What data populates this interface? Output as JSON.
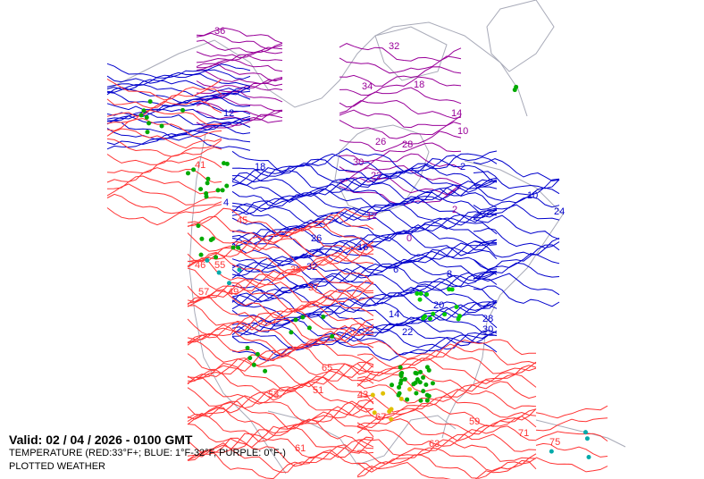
{
  "legend": {
    "valid": "Valid: 02 / 04 / 2026  -  0100 GMT",
    "temperature": "TEMPERATURE (RED:33°F+; BLUE: 1°F-32°F, PURPLE: 0°F-)",
    "weather": "PLOTTED WEATHER"
  },
  "colors": {
    "warm": "#ff3333",
    "cool": "#0000cc",
    "cold": "#990099",
    "coast": "#a8aab8",
    "rain": "#00aa00",
    "snow": "#00cc00",
    "freezing": "#00aaaa",
    "fog": "#e0c000"
  },
  "contour_labels": {
    "red": [
      "41",
      "45",
      "39",
      "57",
      "49",
      "37",
      "53",
      "61",
      "59",
      "63",
      "71",
      "75",
      "67",
      "65",
      "55",
      "46",
      "51",
      "43"
    ],
    "blue": [
      "26",
      "18",
      "12",
      "10",
      "6",
      "8",
      "4",
      "14",
      "20",
      "28",
      "30",
      "32",
      "22",
      "16",
      "2",
      "24"
    ],
    "purple": [
      "36",
      "32",
      "34",
      "18",
      "30",
      "14",
      "10",
      "2",
      "0",
      "12",
      "22",
      "28",
      "26"
    ]
  }
}
